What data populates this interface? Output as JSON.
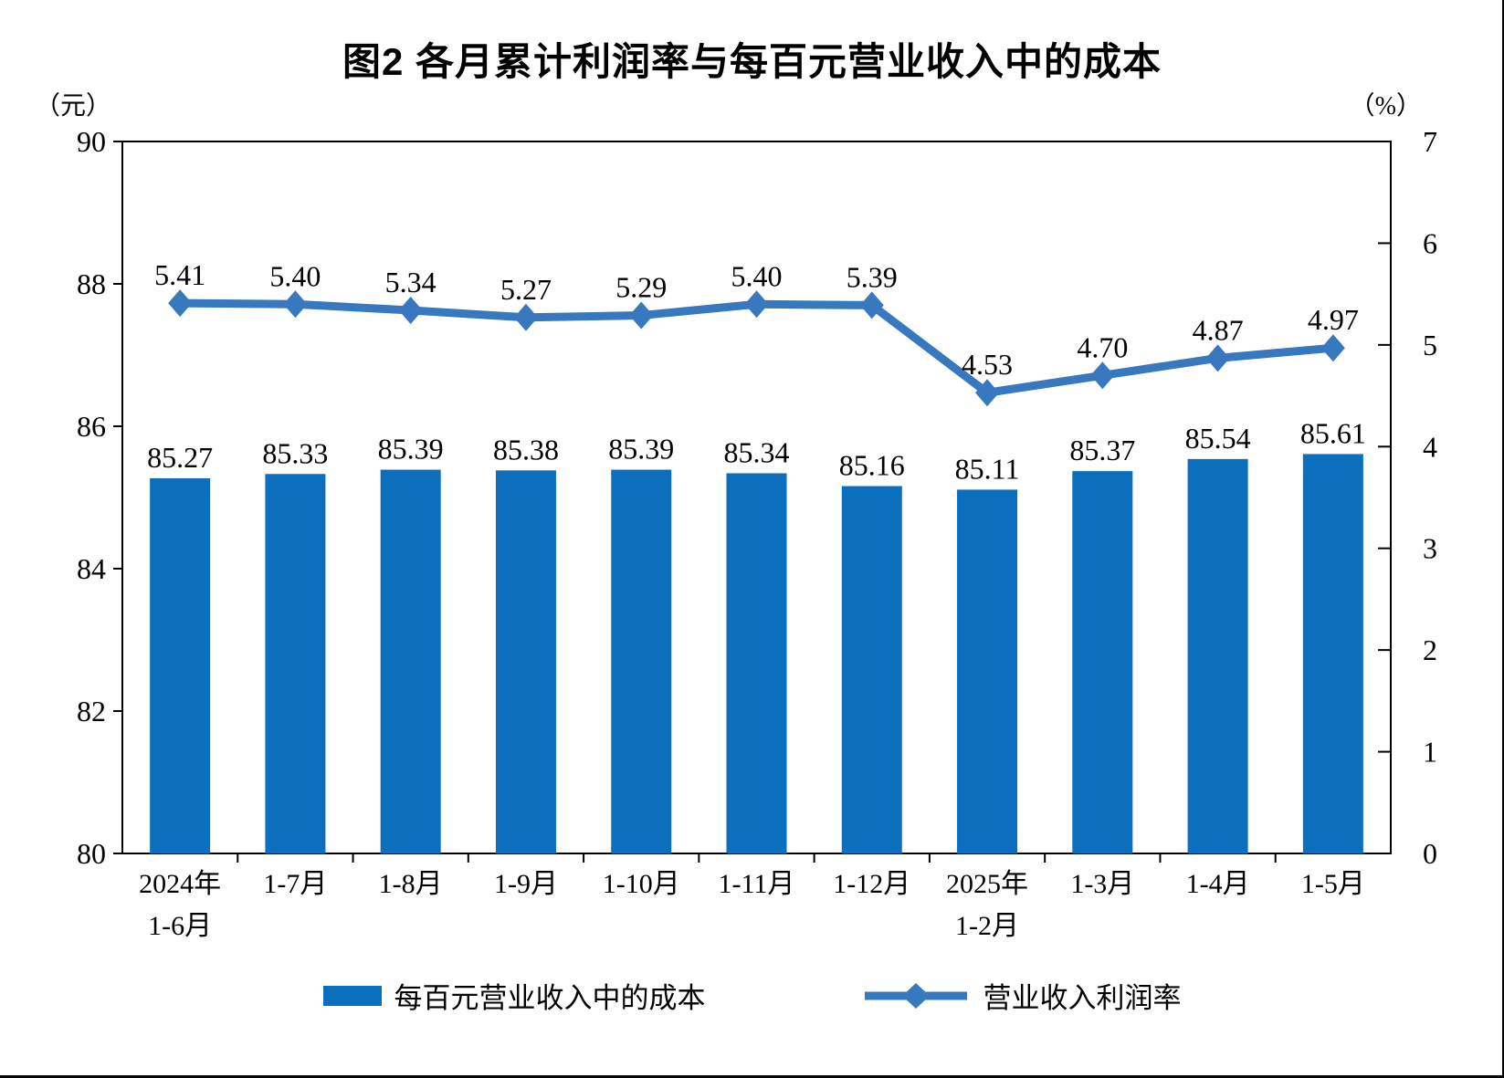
{
  "title": "图2  各月累计利润率与每百元营业收入中的成本",
  "left_axis_unit": "（元）",
  "right_axis_unit": "（%）",
  "legend": {
    "bar_label": "每百元营业收入中的成本",
    "line_label": "营业收入利润率"
  },
  "colors": {
    "bar": "#0B6FBD",
    "line": "#3878BE",
    "axis": "#000000",
    "text": "#000000"
  },
  "chart_data": {
    "type": "bar",
    "subtype": "bar+line dual-axis",
    "title": "图2  各月累计利润率与每百元营业收入中的成本",
    "legend_position": "bottom",
    "grid": false,
    "categories": [
      [
        "2024年",
        "1-6月"
      ],
      [
        "1-7月"
      ],
      [
        "1-8月"
      ],
      [
        "1-9月"
      ],
      [
        "1-10月"
      ],
      [
        "1-11月"
      ],
      [
        "1-12月"
      ],
      [
        "2025年",
        "1-2月"
      ],
      [
        "1-3月"
      ],
      [
        "1-4月"
      ],
      [
        "1-5月"
      ]
    ],
    "series": [
      {
        "name": "每百元营业收入中的成本",
        "type": "bar",
        "axis": "left",
        "values": [
          85.27,
          85.33,
          85.39,
          85.38,
          85.39,
          85.34,
          85.16,
          85.11,
          85.37,
          85.54,
          85.61
        ]
      },
      {
        "name": "营业收入利润率",
        "type": "line",
        "axis": "right",
        "values": [
          5.41,
          5.4,
          5.34,
          5.27,
          5.29,
          5.4,
          5.39,
          4.53,
          4.7,
          4.87,
          4.97
        ]
      }
    ],
    "left_axis": {
      "label": "（元）",
      "min": 80,
      "max": 90,
      "ticks": [
        90,
        88,
        86,
        84,
        82,
        80
      ]
    },
    "right_axis": {
      "label": "（%）",
      "min": 0,
      "max": 7,
      "ticks": [
        7,
        6,
        5,
        4,
        3,
        2,
        1,
        0
      ]
    }
  }
}
